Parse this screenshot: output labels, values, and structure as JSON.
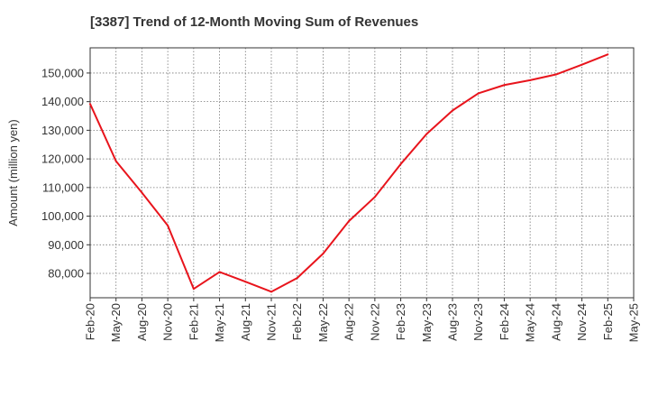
{
  "chart_data": {
    "type": "line",
    "title": "[3387]  Trend of 12-Month Moving Sum of Revenues",
    "xlabel": "",
    "ylabel": "Amount (million yen)",
    "ylim": [
      71500,
      158800
    ],
    "grid": true,
    "x_tick_labels": [
      "Feb-20",
      "May-20",
      "Aug-20",
      "Nov-20",
      "Feb-21",
      "May-21",
      "Aug-21",
      "Nov-21",
      "Feb-22",
      "May-22",
      "Aug-22",
      "Nov-22",
      "Feb-23",
      "May-23",
      "Aug-23",
      "Nov-23",
      "Feb-24",
      "May-24",
      "Aug-24",
      "Nov-24",
      "Feb-25",
      "May-25"
    ],
    "y_ticks": [
      80000,
      90000,
      100000,
      110000,
      120000,
      130000,
      140000,
      150000
    ],
    "y_tick_labels": [
      "80,000",
      "90,000",
      "100,000",
      "110,000",
      "120,000",
      "130,000",
      "140,000",
      "150,000"
    ],
    "series": [
      {
        "color": "#e8141c",
        "x": [
          "Feb-20",
          "May-20",
          "Aug-20",
          "Nov-20",
          "Feb-21",
          "May-21",
          "Aug-21",
          "Nov-21",
          "Feb-22",
          "May-22",
          "Aug-22",
          "Nov-22",
          "Feb-23",
          "May-23",
          "Aug-23",
          "Nov-23",
          "Feb-24",
          "May-24",
          "Aug-24",
          "Nov-24",
          "Feb-25"
        ],
        "values": [
          139200,
          119200,
          108200,
          96700,
          74600,
          80500,
          77100,
          73600,
          78400,
          86900,
          98300,
          106700,
          118200,
          128700,
          136900,
          142900,
          145800,
          147500,
          149500,
          152900,
          156500
        ]
      }
    ]
  }
}
